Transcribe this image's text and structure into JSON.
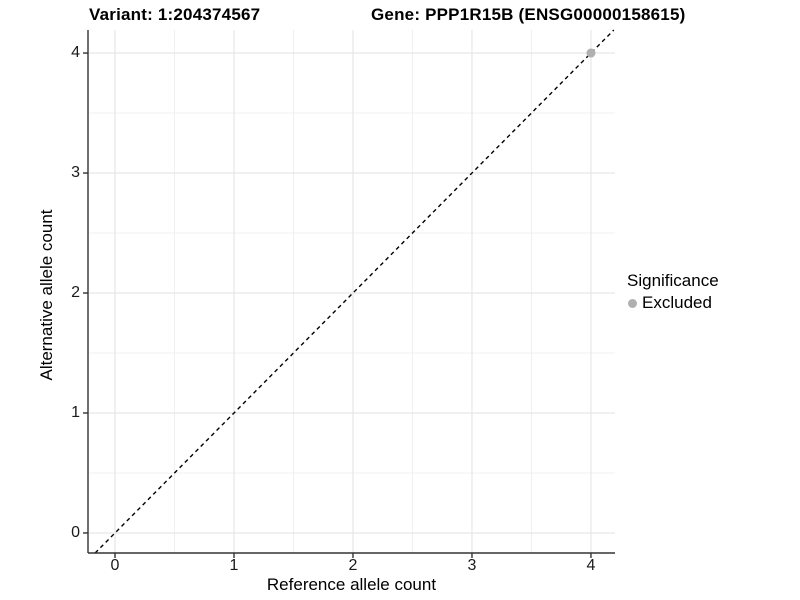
{
  "chart_data": {
    "type": "scatter",
    "titles": {
      "left": "Variant: 1:204374567",
      "right": "Gene: PPP1R15B (ENSG00000158615)"
    },
    "xlabel": "Reference allele count",
    "ylabel": "Alternative allele count",
    "xlim": [
      -0.227,
      4.202
    ],
    "ylim": [
      -0.167,
      4.192
    ],
    "xticks": [
      0,
      1,
      2,
      3,
      4
    ],
    "yticks": [
      0,
      1,
      2,
      3,
      4
    ],
    "minor_grid_step": 0.5,
    "grid": true,
    "identity_line": {
      "equation": "y = x",
      "style": "dashed",
      "color": "#000000"
    },
    "series": [
      {
        "name": "Excluded",
        "color": "#b0b0b0",
        "points": [
          [
            4,
            4
          ]
        ]
      }
    ],
    "legend": {
      "position": "right",
      "title": "Significance",
      "items": [
        {
          "label": "Excluded",
          "color": "#b0b0b0"
        }
      ]
    },
    "colors": {
      "background": "#ffffff",
      "grid_major": "#e2e2e2",
      "grid_minor": "#f0f0f0",
      "axis_line": "#333333",
      "tick_mark": "#333333"
    }
  }
}
